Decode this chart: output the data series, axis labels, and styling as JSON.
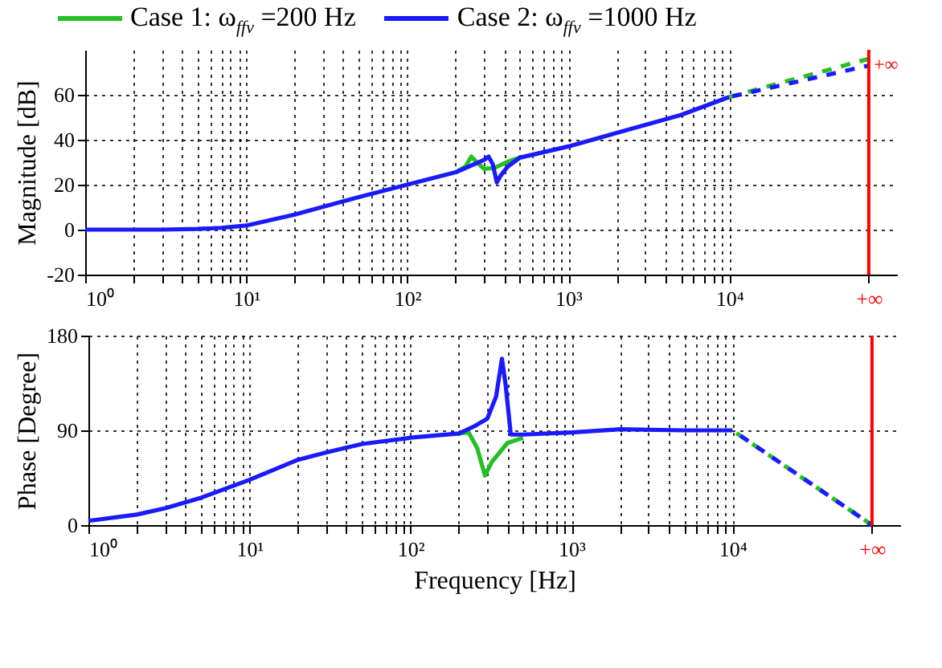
{
  "chart_data": [
    {
      "type": "line",
      "ylabel": "Magnitude [dB]",
      "legend": "top",
      "grid": true,
      "xlim": [
        1,
        110000
      ],
      "ylim": [
        -20,
        80
      ],
      "log": "x",
      "xticks": [
        {
          "value": 1,
          "label": "10⁰"
        },
        {
          "value": 2,
          "label": null
        },
        {
          "value": 3,
          "label": null
        },
        {
          "value": 4,
          "label": null
        },
        {
          "value": 5,
          "label": null
        },
        {
          "value": 6,
          "label": null
        },
        {
          "value": 7,
          "label": null
        },
        {
          "value": 8,
          "label": null
        },
        {
          "value": 9,
          "label": null
        },
        {
          "value": 10,
          "label": "10¹"
        },
        {
          "value": 20,
          "label": null
        },
        {
          "value": 30,
          "label": null
        },
        {
          "value": 40,
          "label": null
        },
        {
          "value": 50,
          "label": null
        },
        {
          "value": 60,
          "label": null
        },
        {
          "value": 70,
          "label": null
        },
        {
          "value": 80,
          "label": null
        },
        {
          "value": 90,
          "label": null
        },
        {
          "value": 100,
          "label": "10²"
        },
        {
          "value": 200,
          "label": null
        },
        {
          "value": 300,
          "label": null
        },
        {
          "value": 400,
          "label": null
        },
        {
          "value": 500,
          "label": null
        },
        {
          "value": 600,
          "label": null
        },
        {
          "value": 700,
          "label": null
        },
        {
          "value": 800,
          "label": null
        },
        {
          "value": 900,
          "label": null
        },
        {
          "value": 1000,
          "label": "10³"
        },
        {
          "value": 2000,
          "label": null
        },
        {
          "value": 3000,
          "label": null
        },
        {
          "value": 4000,
          "label": null
        },
        {
          "value": 5000,
          "label": null
        },
        {
          "value": 6000,
          "label": null
        },
        {
          "value": 7000,
          "label": null
        },
        {
          "value": 8000,
          "label": null
        },
        {
          "value": 9000,
          "label": null
        },
        {
          "value": 10000,
          "label": "10⁴"
        },
        {
          "value": 73500,
          "label": "+∞"
        }
      ],
      "yticks": [
        -20,
        0,
        20,
        40,
        60
      ],
      "ref_lines": [
        {
          "axis": "x",
          "value": 73500,
          "label": "+∞",
          "color": "#ff0000"
        }
      ],
      "series": [
        {
          "name": "Case 1: ω$_{ffv}$ =200 Hz",
          "color": "#22c022",
          "x": [
            200,
            230,
            250,
            270,
            300,
            350,
            400,
            450,
            500
          ],
          "values": [
            25.5,
            28,
            32.5,
            30,
            27,
            27.5,
            29.5,
            31,
            32
          ]
        },
        {
          "name": "Case 2: ω$_{ffv}$ =1000 Hz",
          "color": "#1a1aff",
          "x": [
            1,
            2,
            3,
            5,
            7,
            10,
            20,
            50,
            100,
            200,
            250,
            300,
            320,
            340,
            360,
            380,
            420,
            500,
            1000,
            2000,
            5000,
            10000
          ],
          "values": [
            0,
            0,
            0,
            0.3,
            0.8,
            1.8,
            6.7,
            14.5,
            20,
            25.5,
            28.5,
            31,
            32.5,
            29,
            21,
            24,
            28,
            32,
            37,
            43,
            51,
            59
          ]
        },
        {
          "color": "#22c022",
          "line_style": "dashed",
          "x": [
            10000,
            73500
          ],
          "values": [
            59,
            76
          ]
        },
        {
          "color": "#1a1aff",
          "line_style": "dashed",
          "x": [
            10000,
            73500
          ],
          "values": [
            59,
            73
          ]
        }
      ]
    },
    {
      "type": "line",
      "xlabel": "Frequency [Hz]",
      "ylabel": "Phase [Degree]",
      "grid": true,
      "xlim": [
        1,
        110000
      ],
      "ylim": [
        0,
        180
      ],
      "log": "x",
      "xticks": [
        {
          "value": 1,
          "label": "10⁰"
        },
        {
          "value": 2,
          "label": null
        },
        {
          "value": 3,
          "label": null
        },
        {
          "value": 4,
          "label": null
        },
        {
          "value": 5,
          "label": null
        },
        {
          "value": 6,
          "label": null
        },
        {
          "value": 7,
          "label": null
        },
        {
          "value": 8,
          "label": null
        },
        {
          "value": 9,
          "label": null
        },
        {
          "value": 10,
          "label": "10¹"
        },
        {
          "value": 20,
          "label": null
        },
        {
          "value": 30,
          "label": null
        },
        {
          "value": 40,
          "label": null
        },
        {
          "value": 50,
          "label": null
        },
        {
          "value": 60,
          "label": null
        },
        {
          "value": 70,
          "label": null
        },
        {
          "value": 80,
          "label": null
        },
        {
          "value": 90,
          "label": null
        },
        {
          "value": 100,
          "label": "10²"
        },
        {
          "value": 200,
          "label": null
        },
        {
          "value": 300,
          "label": null
        },
        {
          "value": 400,
          "label": null
        },
        {
          "value": 500,
          "label": null
        },
        {
          "value": 600,
          "label": null
        },
        {
          "value": 700,
          "label": null
        },
        {
          "value": 800,
          "label": null
        },
        {
          "value": 900,
          "label": null
        },
        {
          "value": 1000,
          "label": "10³"
        },
        {
          "value": 2000,
          "label": null
        },
        {
          "value": 3000,
          "label": null
        },
        {
          "value": 4000,
          "label": null
        },
        {
          "value": 5000,
          "label": null
        },
        {
          "value": 6000,
          "label": null
        },
        {
          "value": 7000,
          "label": null
        },
        {
          "value": 8000,
          "label": null
        },
        {
          "value": 9000,
          "label": null
        },
        {
          "value": 10000,
          "label": "10⁴"
        },
        {
          "value": 73500,
          "label": "+∞"
        }
      ],
      "yticks": [
        0,
        90,
        180
      ],
      "ref_lines": [
        {
          "axis": "x",
          "value": 73500,
          "color": "#ff0000"
        }
      ],
      "series": [
        {
          "color": "#22c022",
          "x": [
            200,
            230,
            260,
            290,
            320,
            400,
            500
          ],
          "values": [
            87,
            88,
            73,
            47,
            60,
            78,
            83
          ]
        },
        {
          "color": "#1a1aff",
          "x": [
            1,
            2,
            3,
            5,
            10,
            20,
            30,
            50,
            100,
            200,
            250,
            300,
            340,
            370,
            390,
            420,
            500,
            1000,
            2000,
            5000,
            10000
          ],
          "values": [
            4,
            10,
            16,
            26,
            43,
            62,
            69,
            77,
            83,
            87,
            94,
            101,
            122,
            158,
            133,
            86,
            86,
            88,
            91,
            90,
            90
          ]
        },
        {
          "color": "#22c022",
          "line_style": "dashed",
          "x": [
            10000,
            73500
          ],
          "values": [
            90,
            0
          ]
        },
        {
          "color": "#1a1aff",
          "line_style": "dashed",
          "x": [
            10000,
            73500
          ],
          "values": [
            90,
            0
          ]
        }
      ]
    }
  ]
}
